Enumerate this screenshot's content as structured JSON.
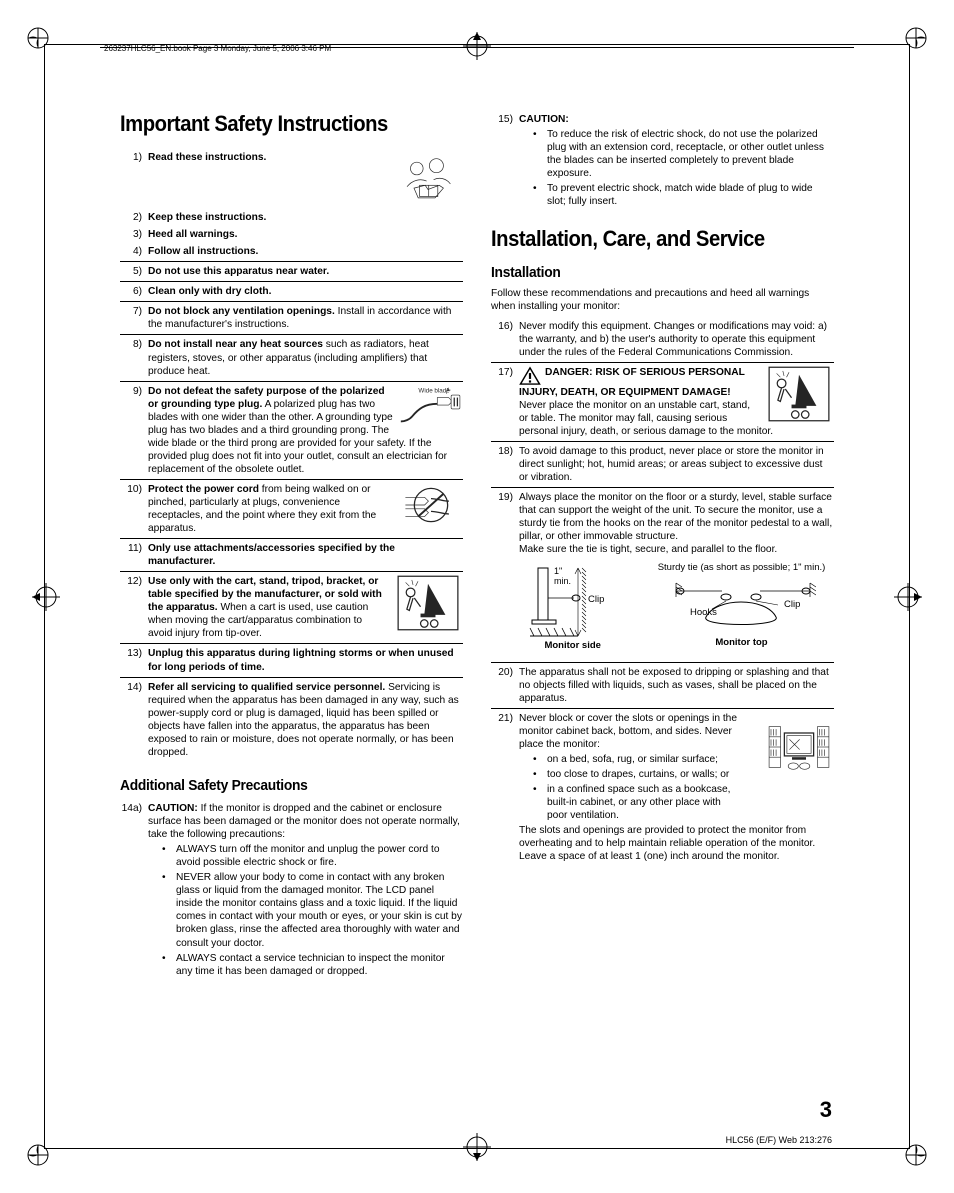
{
  "header": "263237HLC56_EN.book  Page 3  Monday, June 5, 2006  3:46 PM",
  "col1": {
    "h1": "Important Safety Instructions",
    "items": [
      {
        "n": "1)",
        "t": "<b>Read these instructions.</b>"
      },
      {
        "n": "2)",
        "t": "<b>Keep these instructions.</b>"
      },
      {
        "n": "3)",
        "t": "<b>Heed all warnings.</b>"
      },
      {
        "n": "4)",
        "t": "<b>Follow all instructions.</b>"
      },
      {
        "n": "5)",
        "t": "<b>Do not use this apparatus near water.</b>"
      },
      {
        "n": "6)",
        "t": "<b>Clean only with dry cloth.</b>"
      },
      {
        "n": "7)",
        "t": "<b>Do not block any ventilation openings.</b> Install in accordance with the manufacturer's instructions."
      },
      {
        "n": "8)",
        "t": "<b>Do not install near any heat sources</b> such as radiators, heat registers, stoves, or other apparatus (including amplifiers) that produce heat."
      },
      {
        "n": "9)",
        "t": "<b>Do not defeat the safety purpose of the polarized or grounding type plug.</b> A polarized plug has two blades with one wider than the other. A grounding type plug has two blades and a third grounding prong. The wide blade or the third prong are provided for your safety. If the provided plug does not fit into your outlet, consult an electrician for replacement of the obsolete outlet.",
        "icon": "plug",
        "label": "Wide blade"
      },
      {
        "n": "10)",
        "t": "<b>Protect the power cord</b> from being walked on or pinched, particularly at plugs, convenience receptacles, and the point where they exit from the apparatus.",
        "icon": "cord"
      },
      {
        "n": "11)",
        "t": "<b>Only use attachments/accessories specified by the manufacturer.</b>"
      },
      {
        "n": "12)",
        "t": "<b>Use only with the cart, stand, tripod, bracket, or table specified by the manufacturer, or sold with the apparatus.</b> When a cart is used, use caution when moving the cart/apparatus combination to avoid injury from tip-over.",
        "icon": "cart"
      },
      {
        "n": "13)",
        "t": "<b>Unplug this apparatus during lightning storms or when unused for long periods of time.</b>"
      },
      {
        "n": "14)",
        "t": "<b>Refer all servicing to qualified service personnel.</b> Servicing is required when the apparatus has been damaged in any way, such as power-supply cord or plug is damaged, liquid has been spilled or objects have fallen into the apparatus, the apparatus has been exposed to rain or moisture, does not operate normally, or has been dropped."
      }
    ],
    "h2": "Additional Safety Precautions",
    "item14a": {
      "n": "14a)",
      "t": "<b>CAUTION:</b> If the monitor is dropped and the cabinet or enclosure surface has been damaged or the monitor does not operate normally, take the following precautions:",
      "bullets": [
        "ALWAYS turn off the monitor and unplug the power cord to avoid possible electric shock or fire.",
        "NEVER allow your body to come in contact with any broken glass or liquid from the damaged monitor. The LCD panel inside the monitor contains glass and a toxic liquid. If the liquid comes in contact with your mouth or eyes, or your skin is cut by broken glass, rinse the affected area thoroughly with water and consult your doctor.",
        "ALWAYS contact a service technician to inspect the monitor any time it has been damaged or dropped."
      ]
    }
  },
  "col2": {
    "item15": {
      "n": "15)",
      "t": "<b>CAUTION:</b>",
      "bullets": [
        "To reduce the risk of electric shock, do not use the polarized plug with an extension cord, receptacle, or other outlet unless the blades can be inserted completely to prevent blade exposure.",
        "To prevent electric shock, match wide blade of plug to wide slot; fully insert."
      ]
    },
    "h1": "Installation, Care, and Service",
    "h2": "Installation",
    "intro": "Follow these recommendations and precautions and heed all warnings when installing your monitor:",
    "items": [
      {
        "n": "16)",
        "t": "Never modify this equipment. Changes or modifications may void: a) the warranty, and b) the user's authority to operate this equipment under the rules of the Federal Communications Commission."
      },
      {
        "n": "17)",
        "t": "<b>DANGER: RISK OF SERIOUS PERSONAL INJURY, DEATH, OR EQUIPMENT DAMAGE!</b><br>Never place the monitor on an unstable cart, stand, or table. The monitor may fall, causing serious personal injury, death, or serious damage to the monitor.",
        "icon": "cart",
        "warn": true
      },
      {
        "n": "18)",
        "t": "To avoid damage to this product, never place or store the monitor in direct sunlight; hot, humid areas; or areas subject to excessive dust or vibration."
      },
      {
        "n": "19)",
        "t": "Always place the monitor on the floor or a sturdy, level, stable surface that can support the weight of the unit. To secure the monitor, use a sturdy tie from the hooks on the rear of the monitor pedestal to a wall, pillar, or other immovable structure.<br>Make sure the tie is tight, secure, and parallel to the floor.",
        "diagram": true,
        "diag": {
          "tie": "Sturdy tie (as short as possible; 1\" min.)",
          "min": "1\" min.",
          "clip": "Clip",
          "hooks": "Hooks",
          "side": "Monitor side",
          "top": "Monitor top"
        }
      },
      {
        "n": "20)",
        "t": "The apparatus shall not be exposed to dripping or splashing and that no objects filled with liquids, such as vases, shall be placed on the apparatus."
      },
      {
        "n": "21)",
        "t": "Never block or cover the slots or openings in the monitor cabinet back, bottom, and sides. Never place the monitor:",
        "bullets": [
          "on a bed, sofa, rug, or similar surface;",
          "too close to drapes, curtains, or walls; or",
          "in a confined space such as a bookcase, built-in cabinet, or any other place with poor ventilation."
        ],
        "after": "The slots and openings are provided to protect the monitor from overheating and to help maintain reliable operation of the monitor. Leave a space of at least 1 (one) inch around the monitor.",
        "icon": "shelf"
      }
    ]
  },
  "page_num": "3",
  "footer": "HLC56 (E/F) Web 213:276"
}
